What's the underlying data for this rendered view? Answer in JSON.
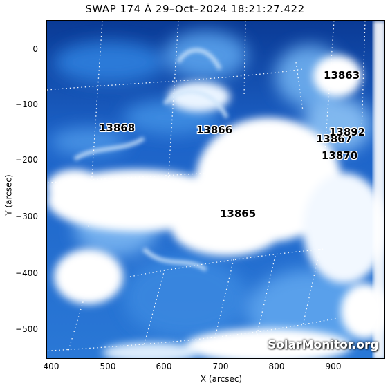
{
  "title": "SWAP 174 Å 29–Oct–2024 18:21:27.422",
  "axes": {
    "xlabel": "X (arcsec)",
    "ylabel": "Y (arcsec)",
    "xticks": [
      "400",
      "500",
      "600",
      "700",
      "800",
      "900"
    ],
    "yticks": [
      "0",
      "−100",
      "−200",
      "−300",
      "−400",
      "−500"
    ]
  },
  "regions": [
    "13863",
    "13868",
    "13866",
    "13867",
    "13892",
    "13870",
    "13865"
  ],
  "watermark": "SolarMonitor.org",
  "colors": {
    "deep_blue": "#0d3f9c",
    "mid_blue": "#2e7fdc",
    "light_blue": "#8cc2f5",
    "white": "#ffffff"
  }
}
